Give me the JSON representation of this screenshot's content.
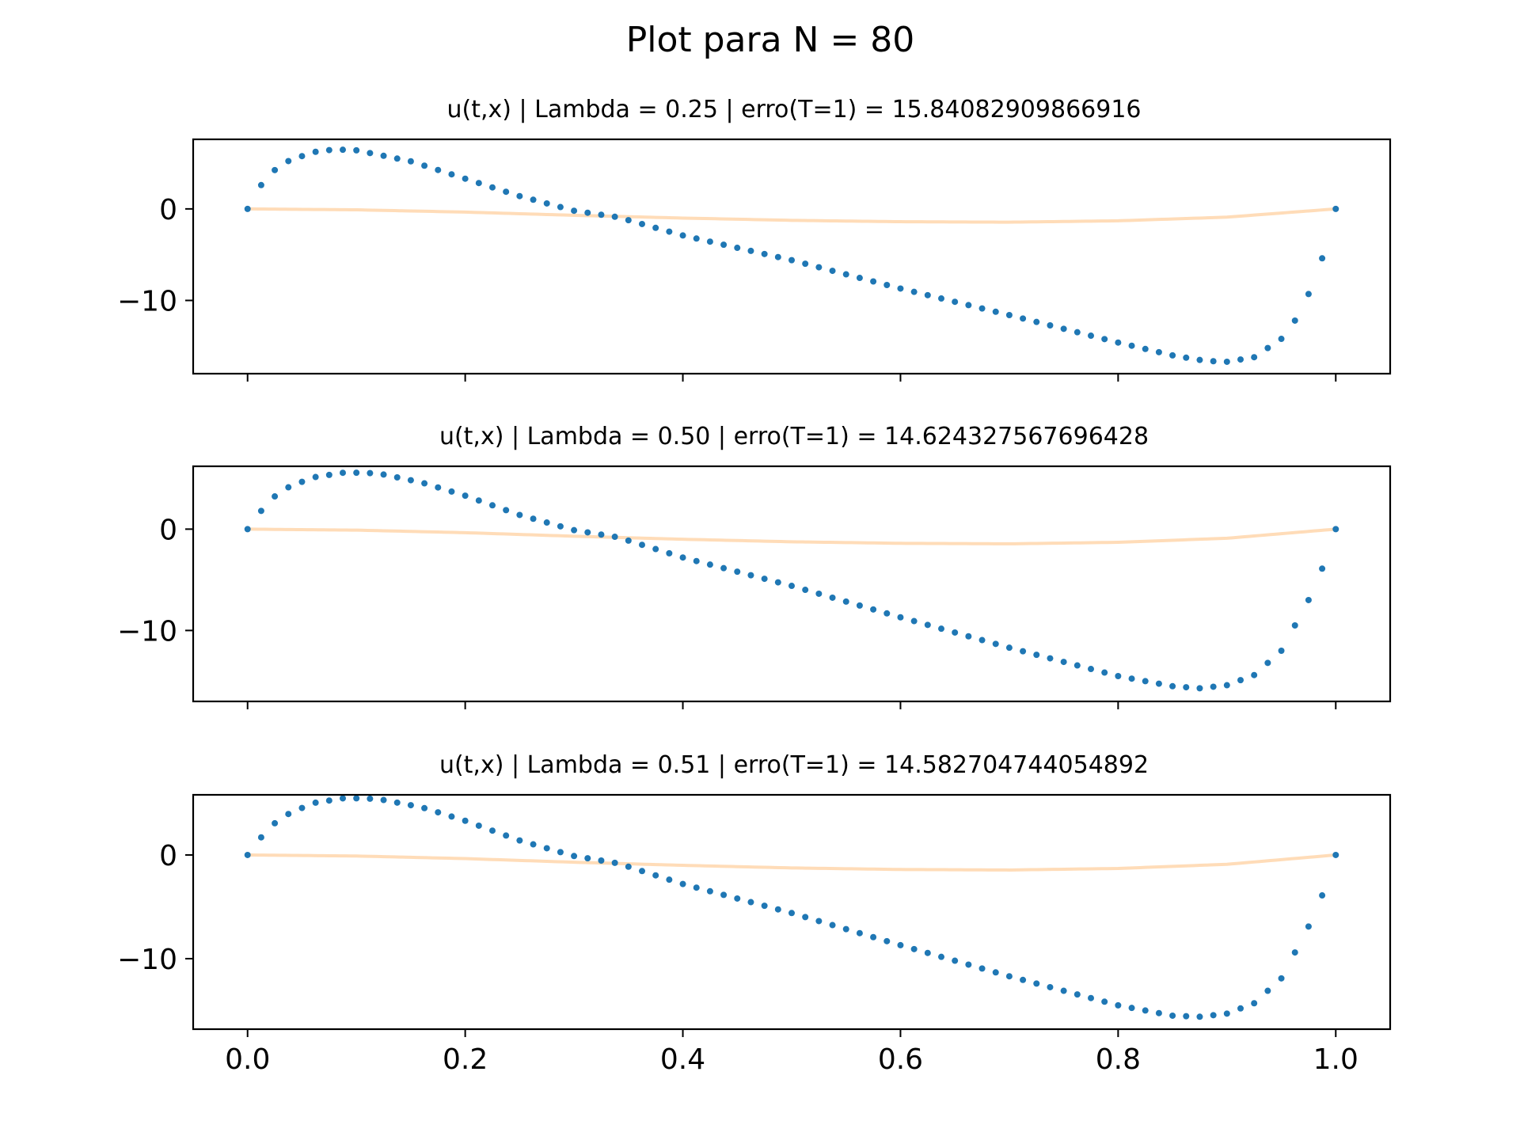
{
  "figure": {
    "suptitle": "Plot para N = 80"
  },
  "colors": {
    "numeric": "#1f77b4",
    "exact": "#ffdcb8",
    "axes": "#000000"
  },
  "chart_data": [
    {
      "type": "scatter",
      "title": "u(t,x) | Lambda = 0.25 | erro(T=1) = 15.84082909866916",
      "xlim": [
        -0.05,
        1.05
      ],
      "ylim": [
        -18,
        7.6
      ],
      "xticks": [
        0.0,
        0.2,
        0.4,
        0.6,
        0.8,
        1.0
      ],
      "xtick_labels": [
        "0.0",
        "0.2",
        "0.4",
        "0.6",
        "0.8",
        "1.0"
      ],
      "show_xtick_labels": false,
      "yticks": [
        0,
        -10
      ],
      "ytick_labels": [
        "0",
        "−10"
      ],
      "series": [
        {
          "kind": "points",
          "anchors": [
            [
              0,
              0
            ],
            [
              0.0125,
              2.6
            ],
            [
              0.03,
              4.9
            ],
            [
              0.06,
              6.2
            ],
            [
              0.08,
              6.5
            ],
            [
              0.1,
              6.4
            ],
            [
              0.15,
              5.2
            ],
            [
              0.2,
              3.3
            ],
            [
              0.25,
              1.4
            ],
            [
              0.3,
              -0.2
            ],
            [
              0.34,
              -0.9
            ],
            [
              0.4,
              -2.9
            ],
            [
              0.5,
              -5.6
            ],
            [
              0.6,
              -8.7
            ],
            [
              0.7,
              -11.6
            ],
            [
              0.8,
              -14.6
            ],
            [
              0.85,
              -16.0
            ],
            [
              0.88,
              -16.6
            ],
            [
              0.9,
              -16.7
            ],
            [
              0.925,
              -16.2
            ],
            [
              0.95,
              -14.2
            ],
            [
              0.9625,
              -12.2
            ],
            [
              0.975,
              -9.3
            ],
            [
              0.9875,
              -5.4
            ],
            [
              1.0,
              0
            ]
          ]
        },
        {
          "kind": "line",
          "anchors": [
            [
              0,
              0
            ],
            [
              0.1,
              -0.1
            ],
            [
              0.2,
              -0.35
            ],
            [
              0.3,
              -0.7
            ],
            [
              0.4,
              -1.0
            ],
            [
              0.5,
              -1.25
            ],
            [
              0.6,
              -1.4
            ],
            [
              0.7,
              -1.45
            ],
            [
              0.8,
              -1.3
            ],
            [
              0.9,
              -0.9
            ],
            [
              1.0,
              0
            ]
          ]
        }
      ]
    },
    {
      "type": "scatter",
      "title": "u(t,x) | Lambda = 0.50 | erro(T=1) = 14.624327567696428",
      "xlim": [
        -0.05,
        1.05
      ],
      "ylim": [
        -17,
        6.2
      ],
      "xticks": [
        0.0,
        0.2,
        0.4,
        0.6,
        0.8,
        1.0
      ],
      "xtick_labels": [
        "0.0",
        "0.2",
        "0.4",
        "0.6",
        "0.8",
        "1.0"
      ],
      "show_xtick_labels": false,
      "yticks": [
        0,
        -10
      ],
      "ytick_labels": [
        "0",
        "−10"
      ],
      "series": [
        {
          "kind": "points",
          "anchors": [
            [
              0,
              0
            ],
            [
              0.0125,
              1.8
            ],
            [
              0.03,
              3.8
            ],
            [
              0.06,
              5.1
            ],
            [
              0.09,
              5.6
            ],
            [
              0.12,
              5.5
            ],
            [
              0.16,
              4.6
            ],
            [
              0.2,
              3.3
            ],
            [
              0.25,
              1.4
            ],
            [
              0.3,
              -0.1
            ],
            [
              0.34,
              -0.8
            ],
            [
              0.4,
              -2.8
            ],
            [
              0.5,
              -5.6
            ],
            [
              0.6,
              -8.7
            ],
            [
              0.7,
              -11.7
            ],
            [
              0.8,
              -14.5
            ],
            [
              0.85,
              -15.5
            ],
            [
              0.875,
              -15.7
            ],
            [
              0.9,
              -15.4
            ],
            [
              0.925,
              -14.4
            ],
            [
              0.95,
              -12.0
            ],
            [
              0.9625,
              -9.5
            ],
            [
              0.975,
              -7.0
            ],
            [
              0.9875,
              -3.9
            ],
            [
              1.0,
              0
            ]
          ]
        },
        {
          "kind": "line",
          "anchors": [
            [
              0,
              0
            ],
            [
              0.1,
              -0.1
            ],
            [
              0.2,
              -0.35
            ],
            [
              0.3,
              -0.7
            ],
            [
              0.4,
              -1.0
            ],
            [
              0.5,
              -1.25
            ],
            [
              0.6,
              -1.4
            ],
            [
              0.7,
              -1.45
            ],
            [
              0.8,
              -1.3
            ],
            [
              0.9,
              -0.9
            ],
            [
              1.0,
              0
            ]
          ]
        }
      ]
    },
    {
      "type": "scatter",
      "title": "u(t,x) | Lambda = 0.51 | erro(T=1) = 14.582704744054892",
      "xlim": [
        -0.05,
        1.05
      ],
      "ylim": [
        -16.8,
        5.8
      ],
      "xticks": [
        0.0,
        0.2,
        0.4,
        0.6,
        0.8,
        1.0
      ],
      "xtick_labels": [
        "0.0",
        "0.2",
        "0.4",
        "0.6",
        "0.8",
        "1.0"
      ],
      "show_xtick_labels": true,
      "yticks": [
        0,
        -10
      ],
      "ytick_labels": [
        "0",
        "−10"
      ],
      "series": [
        {
          "kind": "points",
          "anchors": [
            [
              0,
              0
            ],
            [
              0.0125,
              1.7
            ],
            [
              0.03,
              3.6
            ],
            [
              0.06,
              5.0
            ],
            [
              0.09,
              5.5
            ],
            [
              0.12,
              5.4
            ],
            [
              0.16,
              4.6
            ],
            [
              0.2,
              3.3
            ],
            [
              0.25,
              1.4
            ],
            [
              0.3,
              -0.1
            ],
            [
              0.34,
              -0.8
            ],
            [
              0.4,
              -2.8
            ],
            [
              0.5,
              -5.6
            ],
            [
              0.6,
              -8.7
            ],
            [
              0.7,
              -11.7
            ],
            [
              0.8,
              -14.5
            ],
            [
              0.85,
              -15.5
            ],
            [
              0.875,
              -15.6
            ],
            [
              0.9,
              -15.3
            ],
            [
              0.925,
              -14.3
            ],
            [
              0.95,
              -11.9
            ],
            [
              0.9625,
              -9.4
            ],
            [
              0.975,
              -6.9
            ],
            [
              0.9875,
              -3.9
            ],
            [
              1.0,
              0
            ]
          ]
        },
        {
          "kind": "line",
          "anchors": [
            [
              0,
              0
            ],
            [
              0.1,
              -0.1
            ],
            [
              0.2,
              -0.35
            ],
            [
              0.3,
              -0.7
            ],
            [
              0.4,
              -1.0
            ],
            [
              0.5,
              -1.25
            ],
            [
              0.6,
              -1.4
            ],
            [
              0.7,
              -1.45
            ],
            [
              0.8,
              -1.3
            ],
            [
              0.9,
              -0.9
            ],
            [
              1.0,
              0
            ]
          ]
        }
      ]
    }
  ]
}
